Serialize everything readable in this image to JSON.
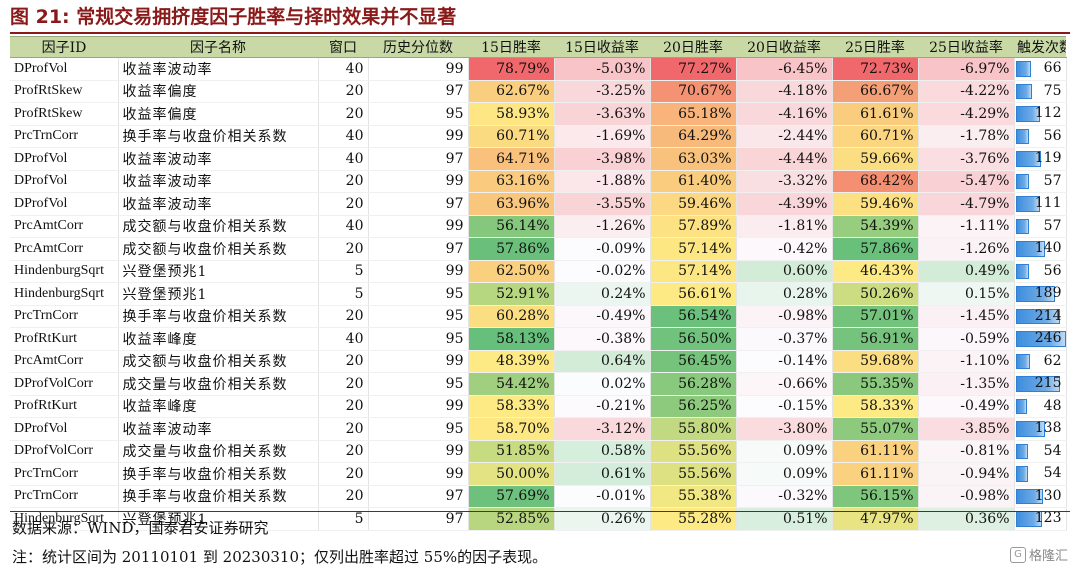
{
  "title": "图 21:  常规交易拥挤度因子胜率与择时效果并不显著",
  "headers": [
    "因子ID",
    "因子名称",
    "窗口",
    "历史分位数",
    "15日胜率",
    "15日收益率",
    "20日胜率",
    "20日收益率",
    "25日胜率",
    "25日收益率",
    "触发次数"
  ],
  "rows": [
    {
      "id": "DProfVol",
      "name": "收益率波动率",
      "window": "40",
      "pct": "99",
      "w15": "78.79%",
      "r15": "-5.03%",
      "w20": "77.27%",
      "r20": "-6.45%",
      "w25": "72.73%",
      "r25": "-6.97%",
      "count": "66"
    },
    {
      "id": "ProfRtSkew",
      "name": "收益率偏度",
      "window": "20",
      "pct": "97",
      "w15": "62.67%",
      "r15": "-3.25%",
      "w20": "70.67%",
      "r20": "-4.18%",
      "w25": "66.67%",
      "r25": "-4.22%",
      "count": "75"
    },
    {
      "id": "ProfRtSkew",
      "name": "收益率偏度",
      "window": "20",
      "pct": "95",
      "w15": "58.93%",
      "r15": "-3.63%",
      "w20": "65.18%",
      "r20": "-4.16%",
      "w25": "61.61%",
      "r25": "-4.29%",
      "count": "112"
    },
    {
      "id": "PrcTrnCorr",
      "name": "换手率与收盘价相关系数",
      "window": "40",
      "pct": "99",
      "w15": "60.71%",
      "r15": "-1.69%",
      "w20": "64.29%",
      "r20": "-2.44%",
      "w25": "60.71%",
      "r25": "-1.78%",
      "count": "56"
    },
    {
      "id": "DProfVol",
      "name": "收益率波动率",
      "window": "40",
      "pct": "97",
      "w15": "64.71%",
      "r15": "-3.98%",
      "w20": "63.03%",
      "r20": "-4.44%",
      "w25": "59.66%",
      "r25": "-3.76%",
      "count": "119"
    },
    {
      "id": "DProfVol",
      "name": "收益率波动率",
      "window": "20",
      "pct": "99",
      "w15": "63.16%",
      "r15": "-1.88%",
      "w20": "61.40%",
      "r20": "-3.32%",
      "w25": "68.42%",
      "r25": "-5.47%",
      "count": "57"
    },
    {
      "id": "DProfVol",
      "name": "收益率波动率",
      "window": "20",
      "pct": "97",
      "w15": "63.96%",
      "r15": "-3.55%",
      "w20": "59.46%",
      "r20": "-4.39%",
      "w25": "59.46%",
      "r25": "-4.79%",
      "count": "111"
    },
    {
      "id": "PrcAmtCorr",
      "name": "成交额与收盘价相关系数",
      "window": "40",
      "pct": "99",
      "w15": "56.14%",
      "r15": "-1.26%",
      "w20": "57.89%",
      "r20": "-1.81%",
      "w25": "54.39%",
      "r25": "-1.11%",
      "count": "57"
    },
    {
      "id": "PrcAmtCorr",
      "name": "成交额与收盘价相关系数",
      "window": "20",
      "pct": "97",
      "w15": "57.86%",
      "r15": "-0.09%",
      "w20": "57.14%",
      "r20": "-0.42%",
      "w25": "57.86%",
      "r25": "-1.26%",
      "count": "140"
    },
    {
      "id": "HindenburgSqrt",
      "name": "兴登堡预兆1",
      "window": "5",
      "pct": "99",
      "w15": "62.50%",
      "r15": "-0.02%",
      "w20": "57.14%",
      "r20": "0.60%",
      "w25": "46.43%",
      "r25": "0.49%",
      "count": "56"
    },
    {
      "id": "HindenburgSqrt",
      "name": "兴登堡预兆1",
      "window": "5",
      "pct": "95",
      "w15": "52.91%",
      "r15": "0.24%",
      "w20": "56.61%",
      "r20": "0.28%",
      "w25": "50.26%",
      "r25": "0.15%",
      "count": "189"
    },
    {
      "id": "PrcTrnCorr",
      "name": "换手率与收盘价相关系数",
      "window": "20",
      "pct": "95",
      "w15": "60.28%",
      "r15": "-0.49%",
      "w20": "56.54%",
      "r20": "-0.98%",
      "w25": "57.01%",
      "r25": "-1.45%",
      "count": "214"
    },
    {
      "id": "ProfRtKurt",
      "name": "收益率峰度",
      "window": "40",
      "pct": "95",
      "w15": "58.13%",
      "r15": "-0.38%",
      "w20": "56.50%",
      "r20": "-0.37%",
      "w25": "56.91%",
      "r25": "-0.59%",
      "count": "246"
    },
    {
      "id": "PrcAmtCorr",
      "name": "成交额与收盘价相关系数",
      "window": "20",
      "pct": "99",
      "w15": "48.39%",
      "r15": "0.64%",
      "w20": "56.45%",
      "r20": "-0.14%",
      "w25": "59.68%",
      "r25": "-1.10%",
      "count": "62"
    },
    {
      "id": "DProfVolCorr",
      "name": "成交量与收盘价相关系数",
      "window": "20",
      "pct": "95",
      "w15": "54.42%",
      "r15": "0.02%",
      "w20": "56.28%",
      "r20": "-0.66%",
      "w25": "55.35%",
      "r25": "-1.35%",
      "count": "215"
    },
    {
      "id": "ProfRtKurt",
      "name": "收益率峰度",
      "window": "20",
      "pct": "99",
      "w15": "58.33%",
      "r15": "-0.21%",
      "w20": "56.25%",
      "r20": "-0.15%",
      "w25": "58.33%",
      "r25": "-0.49%",
      "count": "48"
    },
    {
      "id": "DProfVol",
      "name": "收益率波动率",
      "window": "20",
      "pct": "95",
      "w15": "58.70%",
      "r15": "-3.12%",
      "w20": "55.80%",
      "r20": "-3.80%",
      "w25": "55.07%",
      "r25": "-3.85%",
      "count": "138"
    },
    {
      "id": "DProfVolCorr",
      "name": "成交量与收盘价相关系数",
      "window": "20",
      "pct": "99",
      "w15": "51.85%",
      "r15": "0.58%",
      "w20": "55.56%",
      "r20": "0.09%",
      "w25": "61.11%",
      "r25": "-0.81%",
      "count": "54"
    },
    {
      "id": "PrcTrnCorr",
      "name": "换手率与收盘价相关系数",
      "window": "20",
      "pct": "99",
      "w15": "50.00%",
      "r15": "0.61%",
      "w20": "55.56%",
      "r20": "0.09%",
      "w25": "61.11%",
      "r25": "-0.94%",
      "count": "54"
    },
    {
      "id": "PrcTrnCorr",
      "name": "换手率与收盘价相关系数",
      "window": "20",
      "pct": "97",
      "w15": "57.69%",
      "r15": "-0.01%",
      "w20": "55.38%",
      "r20": "-0.32%",
      "w25": "56.15%",
      "r25": "-0.98%",
      "count": "130"
    },
    {
      "id": "HindenburgSqrt",
      "name": "兴登堡预兆1",
      "window": "5",
      "pct": "97",
      "w15": "52.85%",
      "r15": "0.26%",
      "w20": "55.28%",
      "r20": "0.51%",
      "w25": "47.97%",
      "r25": "0.36%",
      "count": "123"
    }
  ],
  "source": "数据来源：WIND，国泰君安证券研究",
  "note": "注：统计区间为 20110101 到 20230310；仅列出胜率超过 55%的因子表现。",
  "watermark": "格隆汇"
}
